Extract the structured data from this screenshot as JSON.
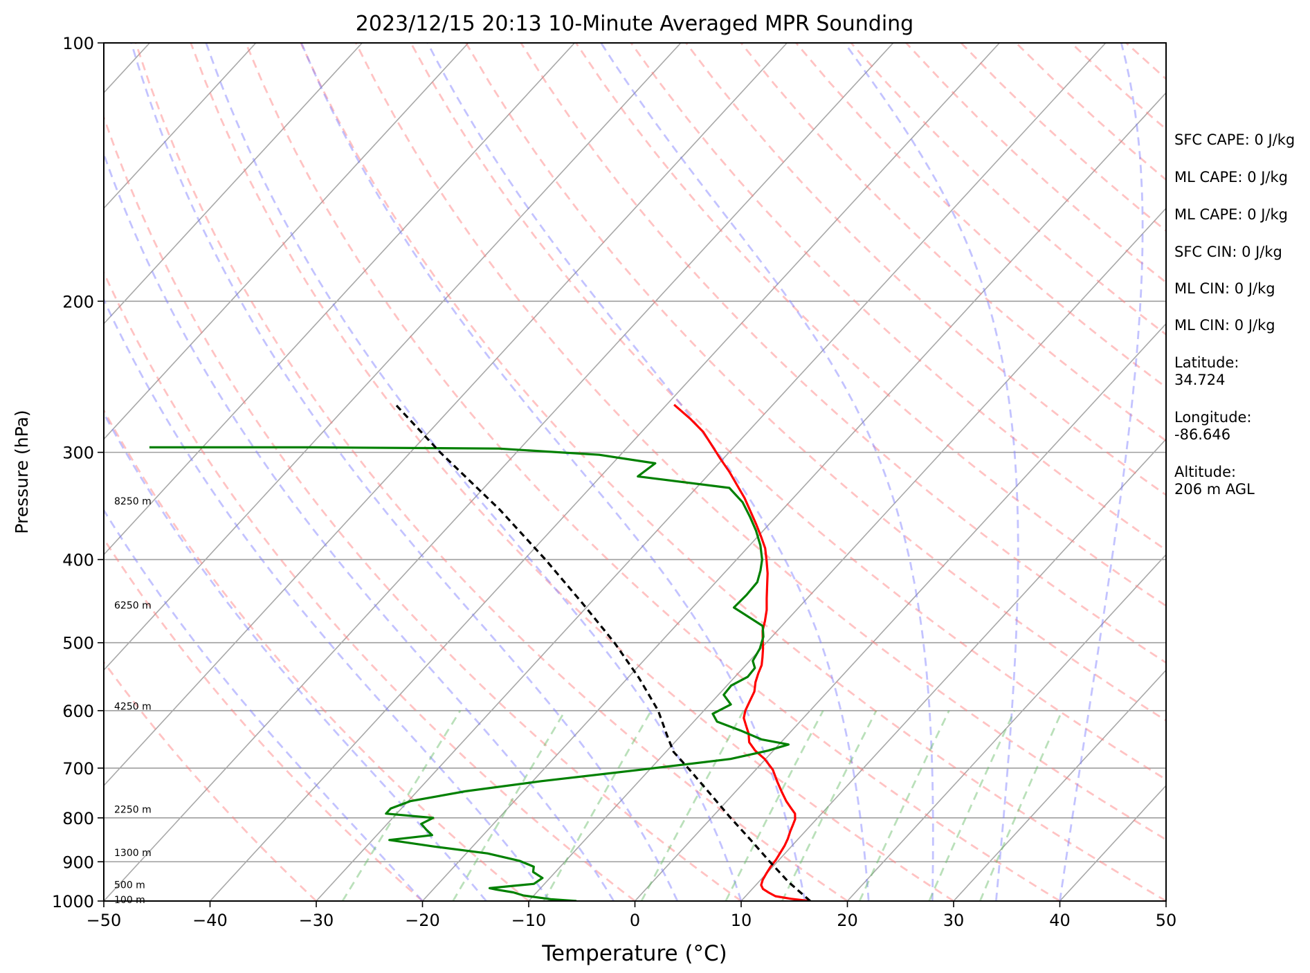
{
  "chart_data": {
    "type": "line",
    "title": "2023/12/15 20:13 10-Minute Averaged MPR Sounding",
    "xlabel": "Temperature (°C)",
    "ylabel": "Pressure (hPa)",
    "xlim": [
      -50,
      50
    ],
    "ylim": [
      1000,
      100
    ],
    "y_scale": "log",
    "skew_t": true,
    "grid": true,
    "x_ticks": [
      "−50",
      "−40",
      "−30",
      "−20",
      "−10",
      "0",
      "10",
      "20",
      "30",
      "40",
      "50"
    ],
    "y_ticks": [
      "100",
      "200",
      "300",
      "400",
      "500",
      "600",
      "700",
      "800",
      "900",
      "1000"
    ],
    "height_labels": [
      {
        "text": "8250 m",
        "p": 342
      },
      {
        "text": "6250 m",
        "p": 452
      },
      {
        "text": "4250 m",
        "p": 593
      },
      {
        "text": "2250 m",
        "p": 782
      },
      {
        "text": "1300 m",
        "p": 878
      },
      {
        "text": "500 m",
        "p": 957
      },
      {
        "text": "100 m",
        "p": 996
      }
    ],
    "series": [
      {
        "color": "#ff0000",
        "style": "solid",
        "points": [
          [
            1000,
            16.5
          ],
          [
            994,
            14.5
          ],
          [
            987,
            12.8
          ],
          [
            978,
            11.9
          ],
          [
            968,
            11.0
          ],
          [
            958,
            10.5
          ],
          [
            945,
            10.2
          ],
          [
            930,
            10.0
          ],
          [
            912,
            9.8
          ],
          [
            895,
            9.7
          ],
          [
            878,
            9.5
          ],
          [
            862,
            9.3
          ],
          [
            846,
            9.0
          ],
          [
            830,
            8.6
          ],
          [
            816,
            8.3
          ],
          [
            803,
            8.0
          ],
          [
            791,
            7.5
          ],
          [
            780,
            6.7
          ],
          [
            765,
            5.6
          ],
          [
            745,
            4.3
          ],
          [
            725,
            3.0
          ],
          [
            703,
            1.6
          ],
          [
            683,
            -0.1
          ],
          [
            668,
            -1.7
          ],
          [
            653,
            -3.0
          ],
          [
            638,
            -3.8
          ],
          [
            625,
            -4.7
          ],
          [
            612,
            -5.6
          ],
          [
            600,
            -6.1
          ],
          [
            585,
            -6.5
          ],
          [
            570,
            -6.9
          ],
          [
            556,
            -7.6
          ],
          [
            543,
            -8.1
          ],
          [
            531,
            -8.5
          ],
          [
            520,
            -9.1
          ],
          [
            508,
            -9.8
          ],
          [
            496,
            -10.6
          ],
          [
            484,
            -11.4
          ],
          [
            472,
            -12.0
          ],
          [
            458,
            -12.8
          ],
          [
            444,
            -13.8
          ],
          [
            430,
            -14.8
          ],
          [
            415,
            -15.9
          ],
          [
            401,
            -17.1
          ],
          [
            388,
            -18.3
          ],
          [
            376,
            -19.7
          ],
          [
            364,
            -21.2
          ],
          [
            352,
            -22.8
          ],
          [
            339,
            -24.6
          ],
          [
            327,
            -26.5
          ],
          [
            316,
            -28.3
          ],
          [
            305,
            -30.3
          ],
          [
            294,
            -32.3
          ],
          [
            284,
            -34.2
          ],
          [
            274,
            -36.6
          ],
          [
            264,
            -39.3
          ]
        ]
      },
      {
        "color": "#008000",
        "style": "solid",
        "points": [
          [
            1000,
            -5.5
          ],
          [
            995,
            -8.1
          ],
          [
            985,
            -11.0
          ],
          [
            977,
            -12.2
          ],
          [
            970,
            -14.0
          ],
          [
            966,
            -14.8
          ],
          [
            955,
            -11.0
          ],
          [
            940,
            -10.7
          ],
          [
            925,
            -12.1
          ],
          [
            912,
            -12.5
          ],
          [
            898,
            -14.3
          ],
          [
            880,
            -18.0
          ],
          [
            864,
            -23.6
          ],
          [
            849,
            -28.4
          ],
          [
            838,
            -24.8
          ],
          [
            826,
            -25.8
          ],
          [
            813,
            -26.8
          ],
          [
            800,
            -26.2
          ],
          [
            791,
            -31.0
          ],
          [
            780,
            -31.0
          ],
          [
            765,
            -29.8
          ],
          [
            745,
            -25.5
          ],
          [
            725,
            -19.2
          ],
          [
            703,
            -10.8
          ],
          [
            683,
            -3.3
          ],
          [
            668,
            -0.5
          ],
          [
            657,
            0.9
          ],
          [
            648,
            -2.1
          ],
          [
            633,
            -4.8
          ],
          [
            618,
            -7.8
          ],
          [
            605,
            -8.9
          ],
          [
            590,
            -8.0
          ],
          [
            575,
            -9.5
          ],
          [
            561,
            -9.6
          ],
          [
            548,
            -8.8
          ],
          [
            535,
            -8.9
          ],
          [
            525,
            -9.7
          ],
          [
            508,
            -10.1
          ],
          [
            492,
            -10.8
          ],
          [
            478,
            -11.8
          ],
          [
            465,
            -14.2
          ],
          [
            455,
            -16.1
          ],
          [
            440,
            -16.0
          ],
          [
            425,
            -16.1
          ],
          [
            412,
            -16.8
          ],
          [
            400,
            -17.6
          ],
          [
            385,
            -19.0
          ],
          [
            370,
            -20.7
          ],
          [
            357,
            -22.4
          ],
          [
            343,
            -24.4
          ],
          [
            330,
            -26.9
          ],
          [
            320,
            -36.5
          ],
          [
            309,
            -36.0
          ],
          [
            302,
            -42.0
          ],
          [
            297,
            -52.0
          ],
          [
            296,
            -70.0
          ],
          [
            296,
            -85.0
          ]
        ]
      },
      {
        "color": "#000000",
        "style": "dashed",
        "points": [
          [
            1000,
            16.5
          ],
          [
            950,
            12.8
          ],
          [
            900,
            9.3
          ],
          [
            850,
            5.7
          ],
          [
            800,
            1.8
          ],
          [
            750,
            -2.2
          ],
          [
            700,
            -6.5
          ],
          [
            670,
            -9.3
          ],
          [
            640,
            -11.4
          ],
          [
            600,
            -14.3
          ],
          [
            550,
            -18.9
          ],
          [
            500,
            -24.3
          ],
          [
            450,
            -30.7
          ],
          [
            400,
            -38.0
          ],
          [
            350,
            -46.6
          ],
          [
            300,
            -57.2
          ],
          [
            264,
            -65.5
          ]
        ]
      }
    ],
    "info_panel": [
      "SFC CAPE: 0 J/kg",
      "ML CAPE: 0 J/kg",
      "ML CAPE: 0 J/kg",
      "SFC CIN: 0 J/kg",
      "ML CIN: 0 J/kg",
      "ML CIN: 0 J/kg",
      "Latitude:\n34.724",
      "Longitude:\n-86.646",
      "Altitude:\n206 m AGL"
    ]
  }
}
